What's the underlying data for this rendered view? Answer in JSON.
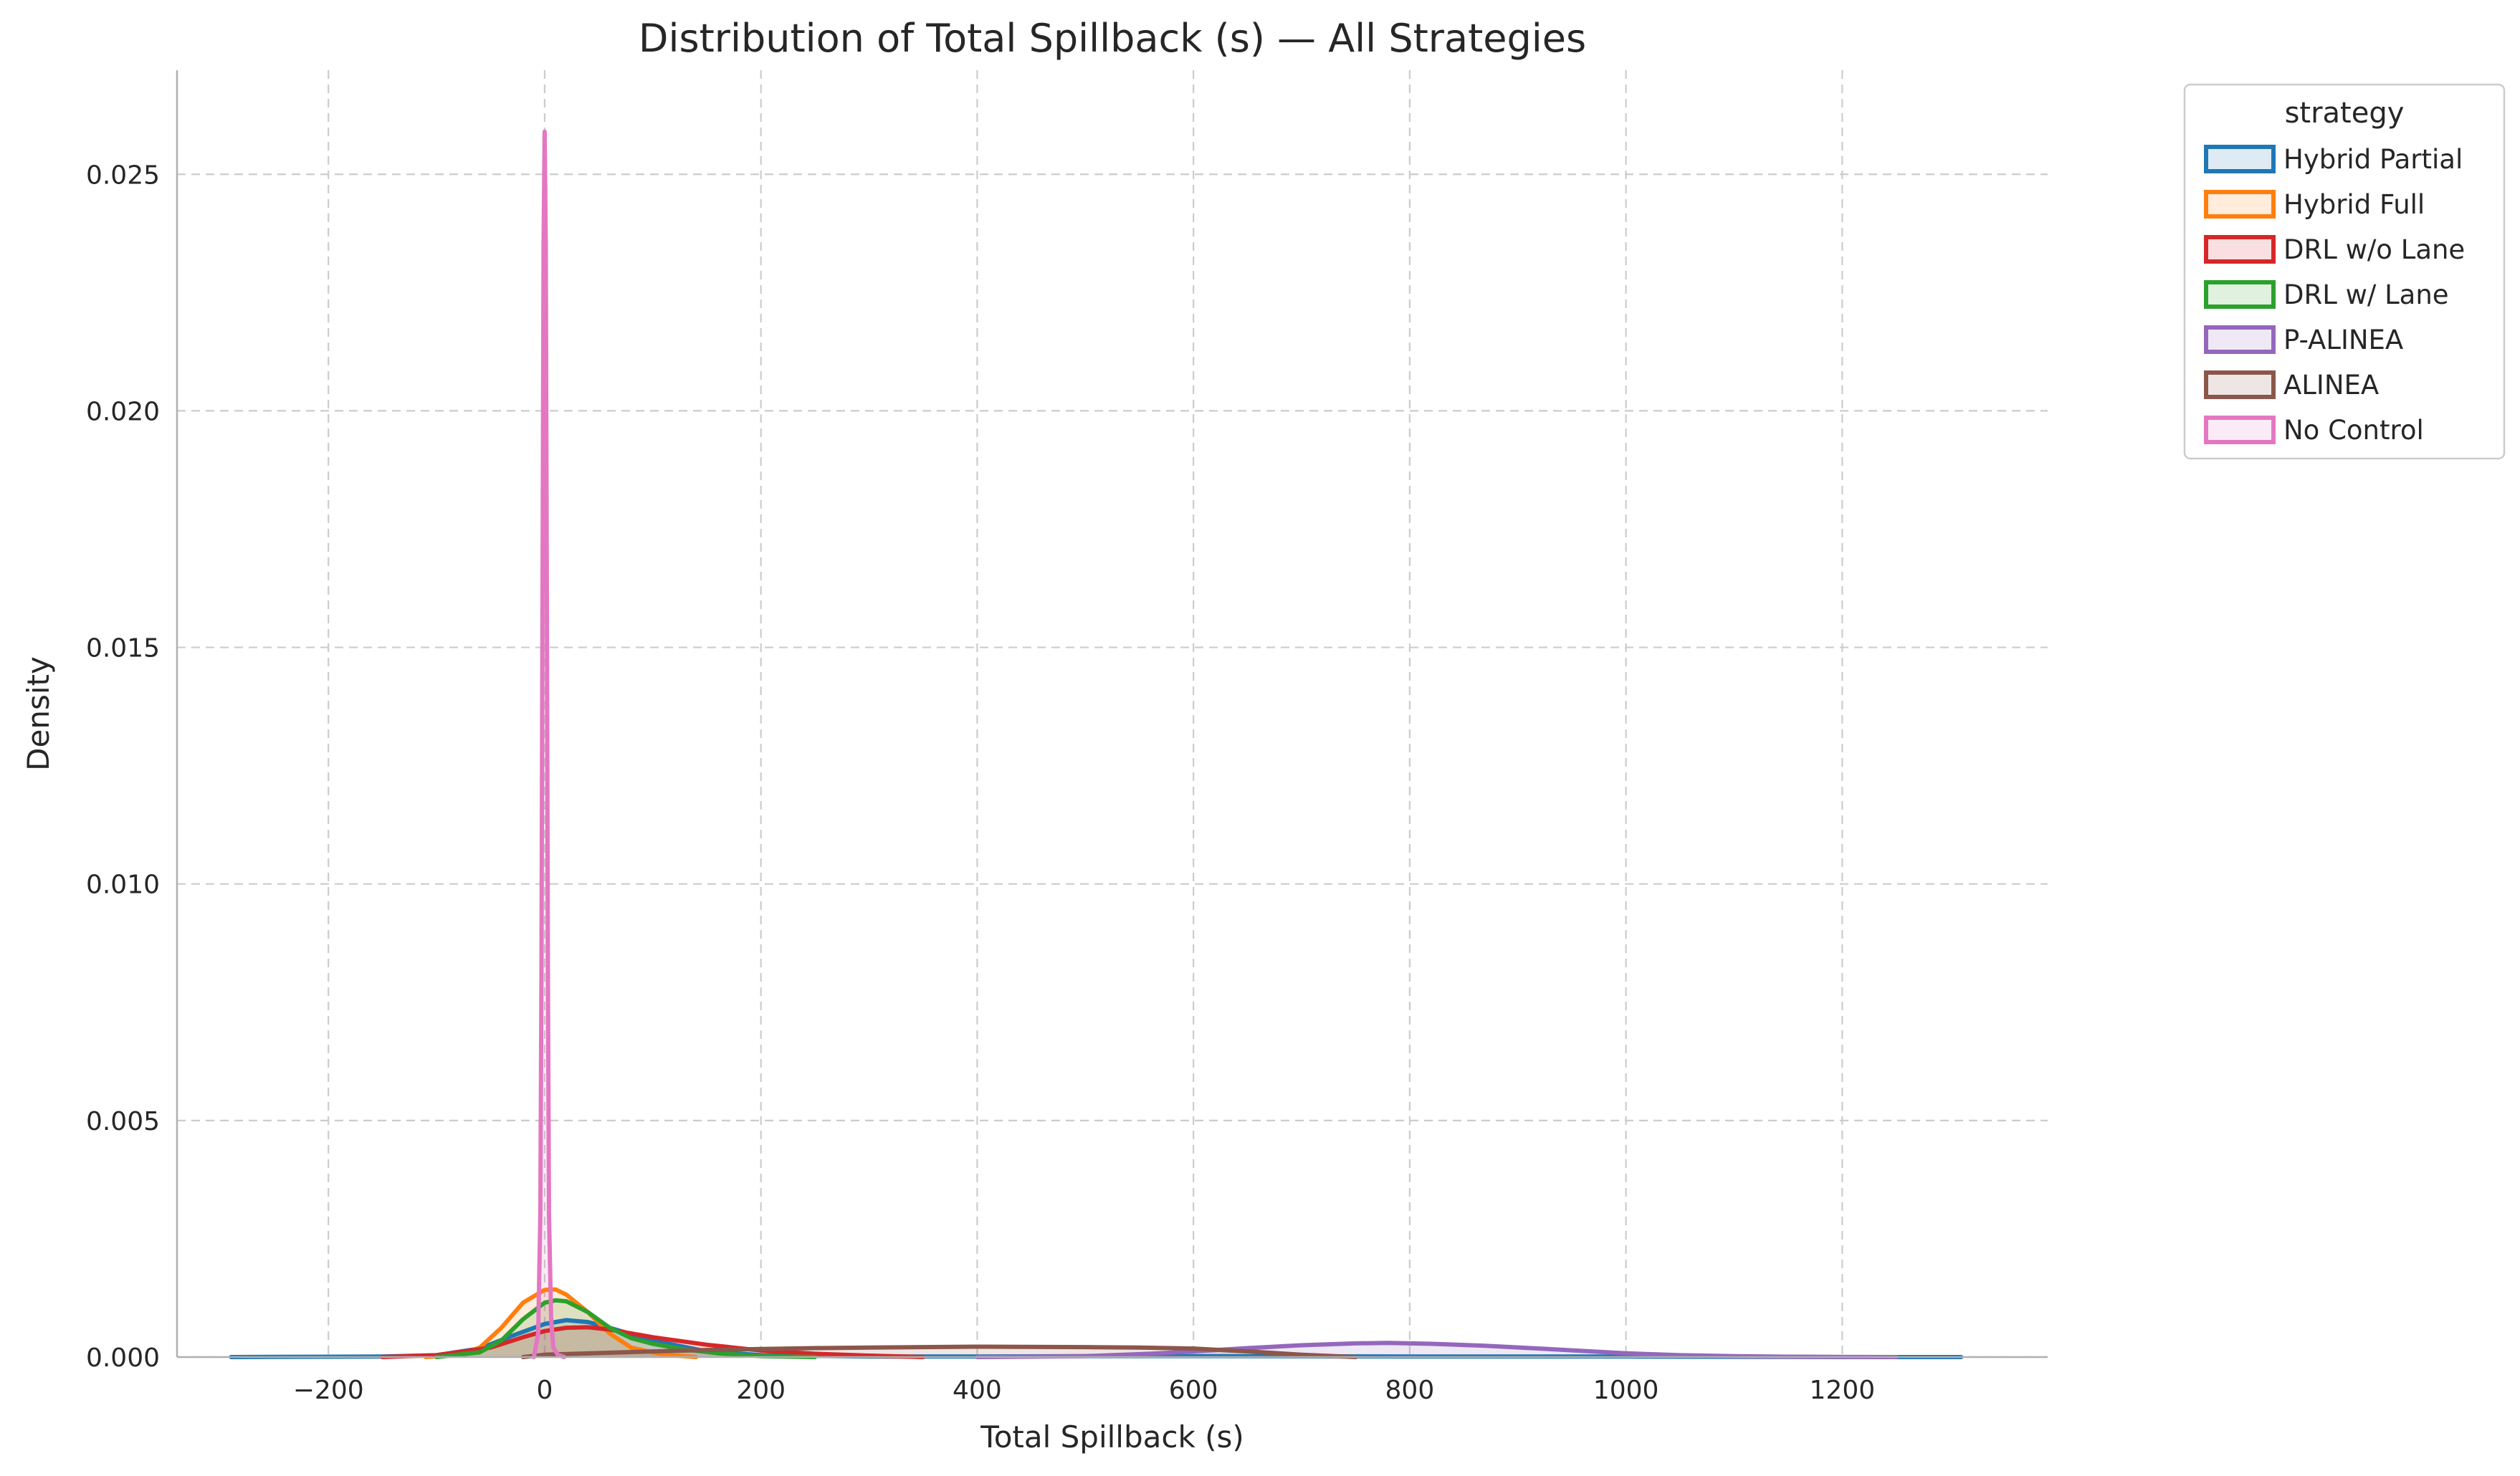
{
  "chart_data": {
    "type": "area",
    "title": "Distribution of Total Spillback (s) — All Strategies",
    "xlabel": "Total Spillback (s)",
    "ylabel": "Density",
    "xlim": [
      -340,
      1390
    ],
    "ylim": [
      0,
      0.0272
    ],
    "xticks": [
      -200,
      0,
      200,
      400,
      600,
      800,
      1000,
      1200
    ],
    "xtick_labels": [
      "−200",
      "0",
      "200",
      "400",
      "600",
      "800",
      "1000",
      "1200"
    ],
    "yticks": [
      0,
      0.005,
      0.01,
      0.015,
      0.02,
      0.025
    ],
    "ytick_labels": [
      "0.000",
      "0.005",
      "0.010",
      "0.015",
      "0.020",
      "0.025"
    ],
    "grid": true,
    "legend": {
      "title": "strategy",
      "placement": "outside-top-right"
    },
    "series": [
      {
        "name": "Hybrid Partial",
        "color": "#1f77b4",
        "x": [
          -290,
          -150,
          -100,
          -60,
          -30,
          0,
          20,
          40,
          60,
          100,
          150,
          200,
          300,
          400,
          500,
          600,
          800,
          1000,
          1200,
          1310
        ],
        "y": [
          0,
          1e-05,
          4e-05,
          0.00018,
          0.00045,
          0.0007,
          0.00078,
          0.00074,
          0.00062,
          0.00035,
          0.00012,
          4e-05,
          1e-05,
          1e-05,
          2e-05,
          2e-05,
          1e-05,
          1e-05,
          0.0,
          0
        ]
      },
      {
        "name": "Hybrid Full",
        "color": "#ff7f0e",
        "x": [
          -110,
          -80,
          -60,
          -40,
          -20,
          0,
          10,
          20,
          40,
          60,
          80,
          110,
          140
        ],
        "y": [
          0,
          5e-05,
          0.0002,
          0.00062,
          0.00115,
          0.00142,
          0.00143,
          0.00132,
          0.00095,
          0.0005,
          0.0002,
          5e-05,
          0
        ]
      },
      {
        "name": "DRL w/o Lane",
        "color": "#d62728",
        "x": [
          -150,
          -100,
          -50,
          -20,
          0,
          20,
          40,
          60,
          100,
          150,
          200,
          250,
          300,
          350
        ],
        "y": [
          0,
          4e-05,
          0.0002,
          0.00042,
          0.00055,
          0.00062,
          0.00063,
          0.00058,
          0.00042,
          0.00026,
          0.00014,
          7e-05,
          3e-05,
          0
        ]
      },
      {
        "name": "DRL w/ Lane",
        "color": "#2ca02c",
        "x": [
          -100,
          -60,
          -40,
          -20,
          0,
          10,
          20,
          40,
          60,
          80,
          100,
          130,
          160,
          200,
          250
        ],
        "y": [
          0,
          0.0001,
          0.00035,
          0.0008,
          0.00115,
          0.0012,
          0.00118,
          0.00095,
          0.00062,
          0.0004,
          0.00028,
          0.00016,
          8e-05,
          2e-05,
          0
        ]
      },
      {
        "name": "P-ALINEA",
        "color": "#9467bd",
        "x": [
          400,
          500,
          560,
          600,
          650,
          700,
          750,
          780,
          820,
          870,
          920,
          1000,
          1050,
          1100,
          1150,
          1200,
          1250
        ],
        "y": [
          0,
          2e-05,
          7e-05,
          0.00012,
          0.00019,
          0.00025,
          0.00029,
          0.0003,
          0.00028,
          0.00024,
          0.00018,
          8e-05,
          4e-05,
          2e-05,
          8e-06,
          2e-06,
          0
        ]
      },
      {
        "name": "ALINEA",
        "color": "#8c564b",
        "x": [
          -20,
          0,
          100,
          150,
          200,
          250,
          300,
          400,
          500,
          550,
          600,
          650,
          700,
          750
        ],
        "y": [
          0,
          5e-05,
          0.00012,
          0.00015,
          0.00017,
          0.00019,
          0.0002,
          0.00022,
          0.00021,
          0.0002,
          0.00018,
          0.00012,
          5e-05,
          0
        ]
      },
      {
        "name": "No Control",
        "color": "#e377c2",
        "x": [
          -10,
          -6,
          -4,
          -3,
          -2,
          -1,
          0,
          1,
          2,
          3,
          4,
          6,
          8,
          12,
          18
        ],
        "y": [
          0,
          0.0005,
          0.003,
          0.008,
          0.016,
          0.0235,
          0.0259,
          0.0235,
          0.016,
          0.008,
          0.003,
          0.0008,
          0.0002,
          5e-05,
          0
        ]
      }
    ]
  }
}
